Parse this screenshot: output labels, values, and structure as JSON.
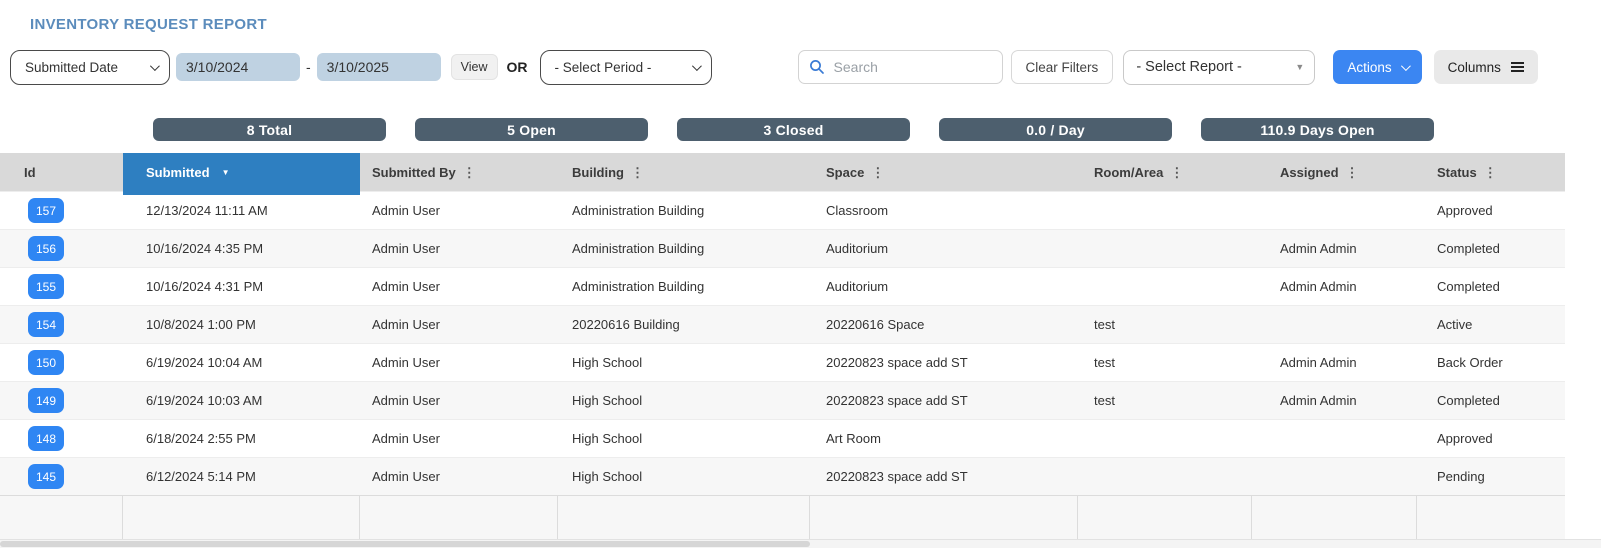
{
  "title": "INVENTORY REQUEST REPORT",
  "colors": {
    "title": "#5b8cbc",
    "accent": "#2e7fc1",
    "accent-btn": "#3b86f2",
    "badge": "#2f86f3",
    "pill": "#4d5f6e"
  },
  "filters": {
    "date_field_selected": "Submitted Date",
    "date_from": "3/10/2024",
    "date_separator": "-",
    "date_to": "3/10/2025",
    "view_label": "View",
    "or_label": "OR",
    "period_selected": "- Select Period -",
    "search_placeholder": "Search",
    "clear_filters_label": "Clear Filters",
    "report_selected": "- Select Report -",
    "actions_label": "Actions",
    "columns_label": "Columns"
  },
  "stats": [
    {
      "label": "8 Total"
    },
    {
      "label": "5 Open"
    },
    {
      "label": "3 Closed"
    },
    {
      "label": "0.0 / Day"
    },
    {
      "label": "110.9 Days Open"
    }
  ],
  "table": {
    "columns": [
      {
        "label": "Id"
      },
      {
        "label": "Submitted",
        "sorted": "desc"
      },
      {
        "label": "Submitted By",
        "menu": true
      },
      {
        "label": "Building",
        "menu": true
      },
      {
        "label": "Space",
        "menu": true
      },
      {
        "label": "Room/Area",
        "menu": true
      },
      {
        "label": "Assigned",
        "menu": true
      },
      {
        "label": "Status",
        "menu": true
      }
    ],
    "rows": [
      {
        "id": "157",
        "submitted": "12/13/2024 11:11 AM",
        "submitted_by": "Admin User",
        "building": "Administration Building",
        "space": "Classroom",
        "room_area": "",
        "assigned": "",
        "status": "Approved"
      },
      {
        "id": "156",
        "submitted": "10/16/2024 4:35 PM",
        "submitted_by": "Admin User",
        "building": "Administration Building",
        "space": "Auditorium",
        "room_area": "",
        "assigned": "Admin Admin",
        "status": "Completed"
      },
      {
        "id": "155",
        "submitted": "10/16/2024 4:31 PM",
        "submitted_by": "Admin User",
        "building": "Administration Building",
        "space": "Auditorium",
        "room_area": "",
        "assigned": "Admin Admin",
        "status": "Completed"
      },
      {
        "id": "154",
        "submitted": "10/8/2024 1:00 PM",
        "submitted_by": "Admin User",
        "building": "20220616 Building",
        "space": "20220616 Space",
        "room_area": "test",
        "assigned": "",
        "status": "Active"
      },
      {
        "id": "150",
        "submitted": "6/19/2024 10:04 AM",
        "submitted_by": "Admin User",
        "building": "High School",
        "space": "20220823 space add ST",
        "room_area": "test",
        "assigned": "Admin Admin",
        "status": "Back Order"
      },
      {
        "id": "149",
        "submitted": "6/19/2024 10:03 AM",
        "submitted_by": "Admin User",
        "building": "High School",
        "space": "20220823 space add ST",
        "room_area": "test",
        "assigned": "Admin Admin",
        "status": "Completed"
      },
      {
        "id": "148",
        "submitted": "6/18/2024 2:55 PM",
        "submitted_by": "Admin User",
        "building": "High School",
        "space": "Art Room",
        "room_area": "",
        "assigned": "",
        "status": "Approved"
      },
      {
        "id": "145",
        "submitted": "6/12/2024 5:14 PM",
        "submitted_by": "Admin User",
        "building": "High School",
        "space": "20220823 space add ST",
        "room_area": "",
        "assigned": "",
        "status": "Pending"
      }
    ]
  }
}
